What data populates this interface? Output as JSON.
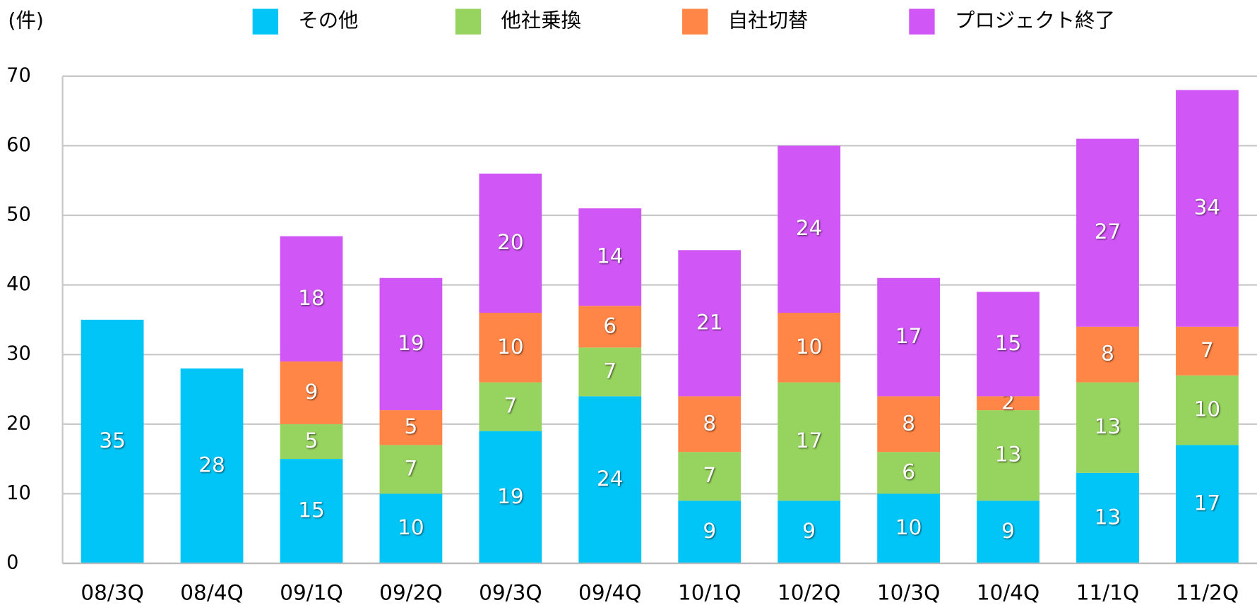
{
  "chart_data": {
    "type": "stacked_bar",
    "y_label": "(件)",
    "categories": [
      "08/3Q",
      "08/4Q",
      "09/1Q",
      "09/2Q",
      "09/3Q",
      "09/4Q",
      "10/1Q",
      "10/2Q",
      "10/3Q",
      "10/4Q",
      "11/1Q",
      "11/2Q"
    ],
    "series": [
      {
        "name": "その他",
        "color": "#00c5f6",
        "values": [
          35,
          28,
          15,
          10,
          19,
          24,
          9,
          9,
          10,
          9,
          13,
          17
        ]
      },
      {
        "name": "他社乗換",
        "color": "#96d35f",
        "values": [
          null,
          null,
          5,
          7,
          7,
          7,
          7,
          17,
          6,
          13,
          13,
          10
        ]
      },
      {
        "name": "自社切替",
        "color": "#ff8646",
        "values": [
          null,
          null,
          9,
          5,
          10,
          6,
          8,
          10,
          8,
          2,
          8,
          7
        ]
      },
      {
        "name": "プロジェクト終了",
        "color": "#d156f6",
        "values": [
          null,
          null,
          18,
          19,
          20,
          14,
          21,
          24,
          17,
          15,
          27,
          34
        ]
      }
    ],
    "ylim": [
      0,
      70
    ],
    "yticks": [
      0,
      10,
      20,
      30,
      40,
      50,
      60,
      70
    ],
    "grid": true,
    "legend": "top"
  }
}
